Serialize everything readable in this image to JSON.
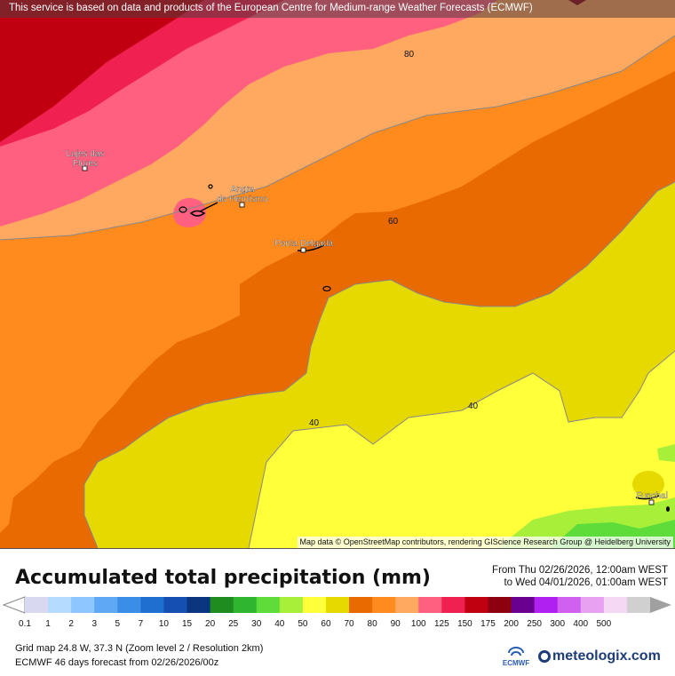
{
  "banner": {
    "text": "This service is based on data and products of the European Centre for Medium-range Weather Forecasts (ECMWF)"
  },
  "map": {
    "attribution": "Map data © OpenStreetMap contributors, rendering GIScience Research Group @ Heidelberg University",
    "places": [
      {
        "name": "Lajes das\nFlores"
      },
      {
        "name": "Angra\ndo Heroísmo"
      },
      {
        "name": "Ponta Delgada"
      },
      {
        "name": "Funchal"
      }
    ],
    "contour_labels": [
      "80",
      "60",
      "40",
      "40"
    ]
  },
  "legend": {
    "title": "Accumulated total precipitation (mm)",
    "from": "From Thu 02/26/2026, 12:00am WEST",
    "to": "to Wed 04/01/2026, 01:00am WEST",
    "ticks": [
      "0.1",
      "1",
      "2",
      "3",
      "5",
      "7",
      "10",
      "15",
      "20",
      "25",
      "30",
      "40",
      "50",
      "60",
      "70",
      "80",
      "90",
      "100",
      "125",
      "150",
      "175",
      "200",
      "250",
      "300",
      "400",
      "500"
    ],
    "colors": [
      "#d8d8f0",
      "#b5dcff",
      "#8ec6ff",
      "#5fa8f5",
      "#3b8ee6",
      "#1e6fd0",
      "#1550b0",
      "#0a3680",
      "#1e8c1e",
      "#2fb52f",
      "#5ddc3a",
      "#a8ef3a",
      "#ffff3a",
      "#e6d900",
      "#e86a00",
      "#ff8a1e",
      "#ffa860",
      "#ff6080",
      "#f02050",
      "#c00010",
      "#8c0010",
      "#6a0090",
      "#b020f0",
      "#d060f0",
      "#e8a0f0",
      "#f4d8f4",
      "#d0d0d0"
    ],
    "grid": "Grid map 24.8 W, 37.3 N (Zoom level 2 / Resolution 2km)",
    "forecast": "ECMWF 46 days forecast from  02/26/2026/00z",
    "ecmwf_logo": "ECMWF",
    "brand": "meteologix.com"
  }
}
